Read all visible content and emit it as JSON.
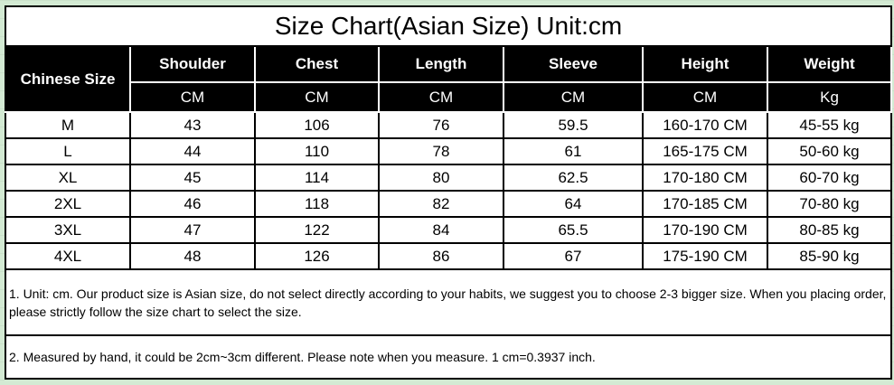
{
  "title": "Size Chart(Asian Size) Unit:cm",
  "headers": {
    "size": "Chinese Size",
    "columns": [
      {
        "label": "Shoulder",
        "unit": "CM"
      },
      {
        "label": "Chest",
        "unit": "CM"
      },
      {
        "label": "Length",
        "unit": "CM"
      },
      {
        "label": "Sleeve",
        "unit": "CM"
      },
      {
        "label": "Height",
        "unit": "CM"
      },
      {
        "label": "Weight",
        "unit": "Kg"
      }
    ]
  },
  "rows": [
    [
      "M",
      "43",
      "106",
      "76",
      "59.5",
      "160-170 CM",
      "45-55 kg"
    ],
    [
      "L",
      "44",
      "110",
      "78",
      "61",
      "165-175 CM",
      "50-60 kg"
    ],
    [
      "XL",
      "45",
      "114",
      "80",
      "62.5",
      "170-180 CM",
      "60-70 kg"
    ],
    [
      "2XL",
      "46",
      "118",
      "82",
      "64",
      "170-185 CM",
      "70-80 kg"
    ],
    [
      "3XL",
      "47",
      "122",
      "84",
      "65.5",
      "170-190 CM",
      "80-85 kg"
    ],
    [
      "4XL",
      "48",
      "126",
      "86",
      "67",
      "175-190 CM",
      "85-90 kg"
    ]
  ],
  "notes": [
    "1. Unit: cm. Our product size is Asian size, do not select directly according to your habits, we suggest you to choose 2-3 bigger size. When you placing order, please strictly follow the size chart to select the size.",
    "2. Measured by hand, it could be 2cm~3cm different. Please note when you measure. 1 cm=0.3937 inch."
  ]
}
